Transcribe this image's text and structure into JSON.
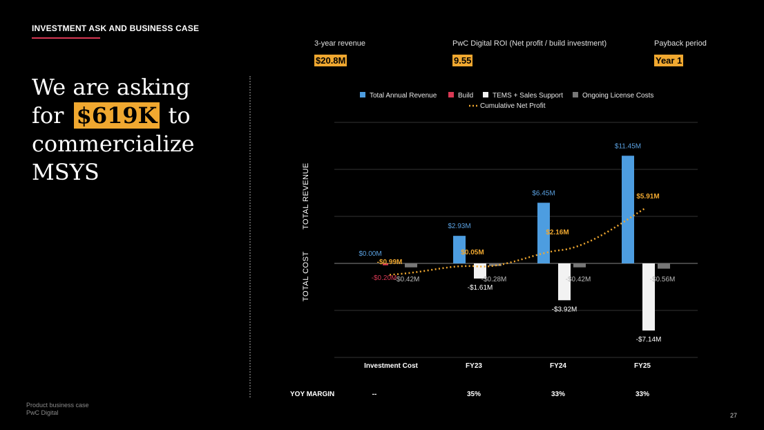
{
  "header": {
    "section_title": "INVESTMENT ASK AND BUSINESS CASE"
  },
  "headline": {
    "line1": "We are asking",
    "for_word": "for",
    "amount": "$619K",
    "to_word": "to",
    "line3": "commercialize",
    "line4": "MSYS"
  },
  "kpis": [
    {
      "label": "3-year revenue",
      "value": "$20.8M"
    },
    {
      "label": "PwC Digital ROI (Net profit / build investment)",
      "value": "9.55"
    },
    {
      "label": "Payback period",
      "value": "Year 1"
    }
  ],
  "footer": {
    "line1": "Product business case",
    "line2": "PwC Digital",
    "page_number": "27"
  },
  "colors": {
    "accent_red": "#d93954",
    "highlight": "#f0a830",
    "revenue": "#4d9de0",
    "build": "#d93954",
    "tems": "#f2f2f2",
    "license": "#777777",
    "profit": "#f0a830"
  },
  "chart_data": {
    "type": "bar",
    "categories": [
      "Investment Cost",
      "FY23",
      "FY24",
      "FY25"
    ],
    "series": [
      {
        "name": "Total Annual Revenue",
        "values": [
          0.0,
          2.93,
          6.45,
          11.45
        ],
        "labels": [
          "$0.00M",
          "$2.93M",
          "$6.45M",
          "$11.45M"
        ]
      },
      {
        "name": "Build",
        "values": [
          -0.2,
          0,
          0,
          0
        ],
        "labels": [
          "-$0.20M",
          "",
          "",
          ""
        ]
      },
      {
        "name": "TEMS + Sales Support",
        "values": [
          0,
          -1.61,
          -3.92,
          -7.14
        ],
        "labels": [
          "",
          "-$1.61M",
          "-$3.92M",
          "-$7.14M"
        ]
      },
      {
        "name": "Ongoing License Costs",
        "values": [
          -0.42,
          -0.28,
          -0.42,
          -0.56
        ],
        "labels": [
          "-$0.42M",
          "-$0.28M",
          "-$0.42M",
          "-$0.56M"
        ]
      },
      {
        "name": "Cumulative Net Profit",
        "type": "line",
        "values": [
          -0.99,
          0.05,
          2.16,
          5.91
        ],
        "labels": [
          "-$0.99M",
          "$0.05M",
          "$2.16M",
          "$5.91M"
        ]
      }
    ],
    "ylim": [
      -10,
      15
    ],
    "ylabel_top": "TOTAL REVENUE",
    "ylabel_bottom": "TOTAL COST",
    "legend_position": "top",
    "grid": true,
    "margin_row": {
      "label": "YOY MARGIN",
      "values": [
        "--",
        "35%",
        "33%",
        "33%"
      ]
    }
  }
}
